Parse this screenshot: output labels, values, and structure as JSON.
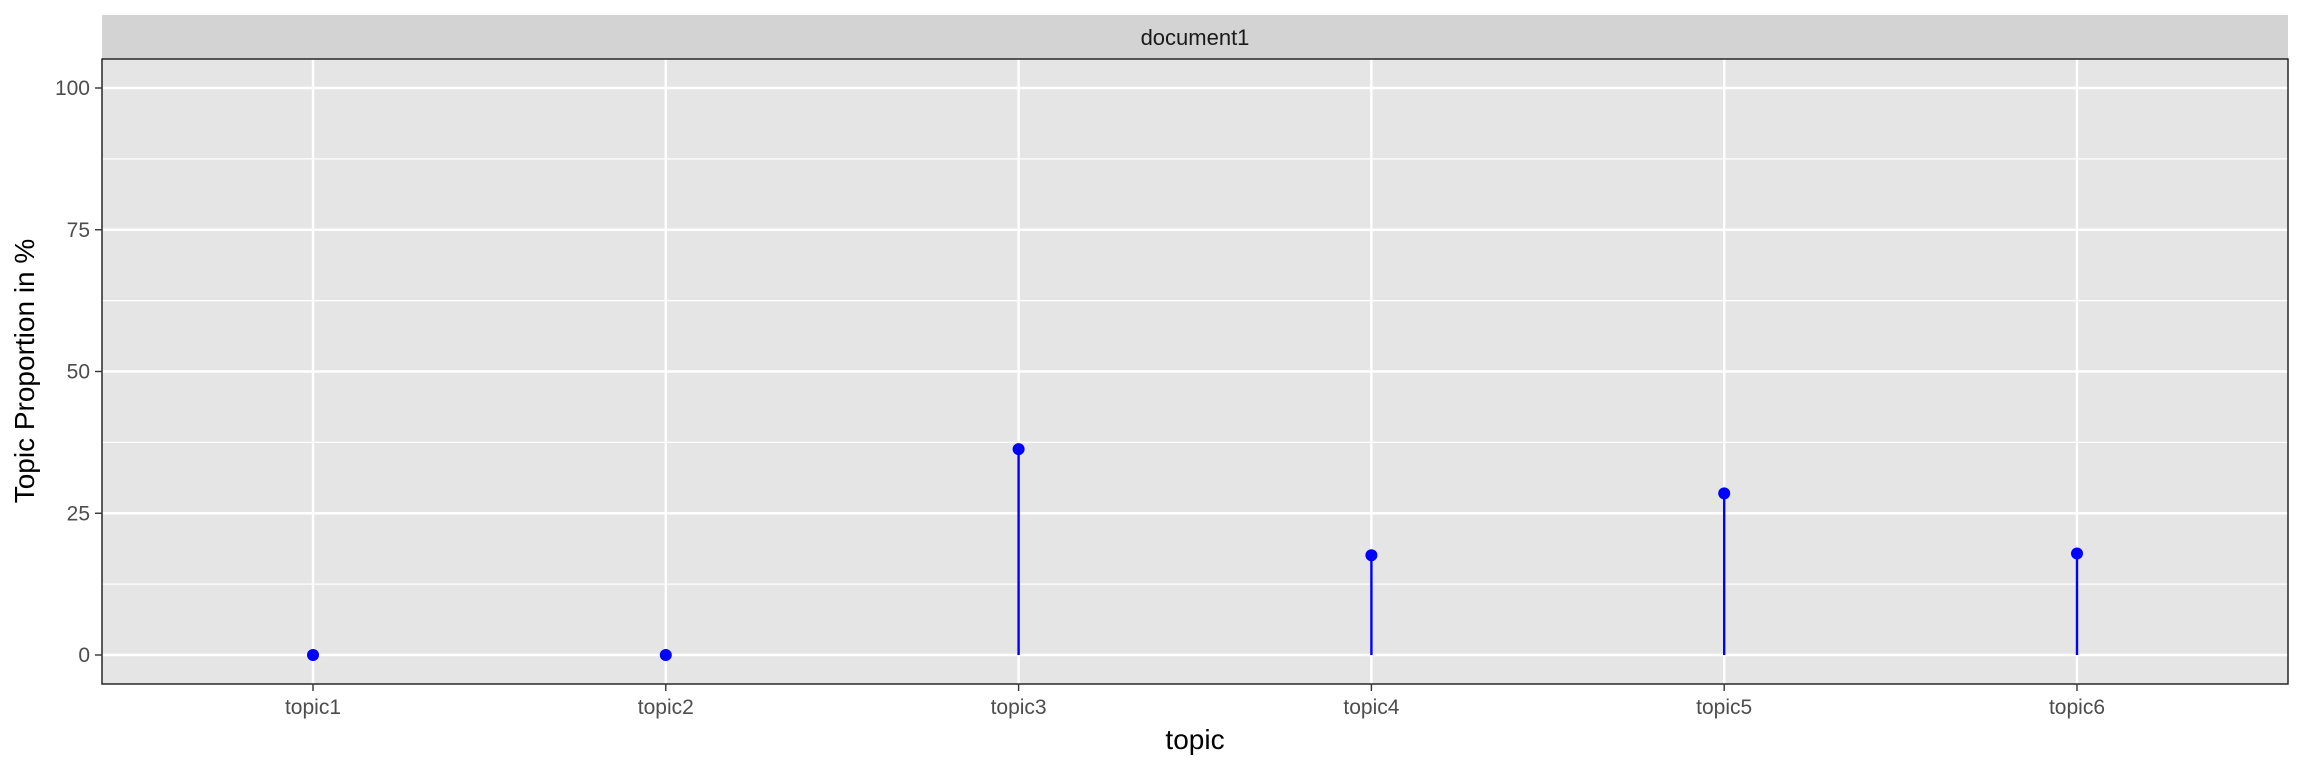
{
  "chart_data": {
    "type": "lollipop",
    "facet_label": "document1",
    "categories": [
      "topic1",
      "topic2",
      "topic3",
      "topic4",
      "topic5",
      "topic6"
    ],
    "values": [
      0,
      0,
      36.3,
      17.6,
      28.5,
      17.9
    ],
    "xlabel": "topic",
    "ylabel": "Topic Proportion in %",
    "ylim": [
      0,
      100
    ],
    "yticks": [
      0,
      25,
      50,
      75,
      100
    ],
    "ytick_labels": [
      "0",
      "25",
      "50",
      "75",
      "100"
    ],
    "grid": true,
    "colors": {
      "marker": "#0000ff",
      "panel_background": "#e5e5e5",
      "strip_background": "#d3d3d3",
      "grid": "#ffffff"
    }
  }
}
